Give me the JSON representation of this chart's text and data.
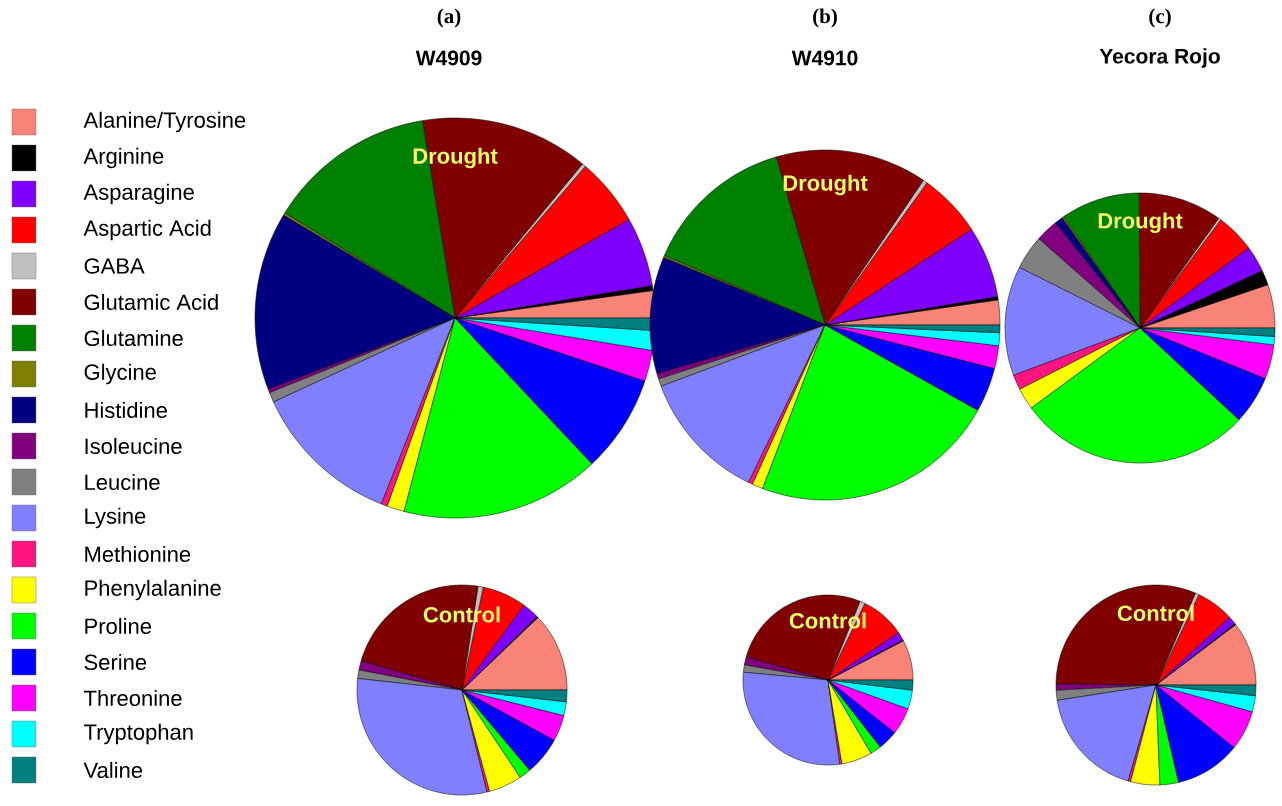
{
  "chart_data": [
    {
      "type": "pie",
      "title": "(a)",
      "subtitle": "W4909",
      "annotations": [
        "Drought"
      ],
      "legend": "left",
      "categories": [
        "Alanine/Tyrosine",
        "Arginine",
        "Asparagine",
        "Aspartic Acid",
        "GABA",
        "Glutamic Acid",
        "Glutamine",
        "Glycine",
        "Histidine",
        "Isoleucine",
        "Leucine",
        "Lysine",
        "Methionine",
        "Phenylalanine",
        "Proline",
        "Serine",
        "Threonine",
        "Tryptophan",
        "Valine"
      ],
      "values": [
        2.2,
        0.4,
        5.6,
        5.5,
        0.3,
        13.6,
        13.6,
        0.2,
        14.4,
        0.3,
        0.8,
        12.1,
        0.5,
        1.4,
        16.1,
        7.9,
        2.5,
        1.6,
        1.0
      ],
      "colors": [
        "#f88478",
        "#000000",
        "#8000ff",
        "#ff0000",
        "#c0c0c0",
        "#800000",
        "#008000",
        "#808000",
        "#000080",
        "#800080",
        "#808080",
        "#8080ff",
        "#ff1480",
        "#ffff00",
        "#00ff00",
        "#0000ff",
        "#ff00ff",
        "#00ffff",
        "#008080"
      ]
    },
    {
      "type": "pie",
      "title": "(b)",
      "subtitle": "W4910",
      "annotations": [
        "Drought"
      ],
      "categories": [
        null,
        null,
        null,
        null,
        null,
        null,
        null,
        null,
        null,
        null,
        null,
        null,
        null,
        null,
        null,
        null,
        null,
        null,
        null
      ],
      "values": [
        2.3,
        0.3,
        6.6,
        5.9,
        0.4,
        14.0,
        14.0,
        0.2,
        10.8,
        0.5,
        0.7,
        12.1,
        0.4,
        1.0,
        22.7,
        4.1,
        2.1,
        1.2,
        0.7
      ],
      "colors": [
        "#f88478",
        "#000000",
        "#8000ff",
        "#ff0000",
        "#c0c0c0",
        "#800000",
        "#008000",
        "#808000",
        "#000080",
        "#800080",
        "#808080",
        "#8080ff",
        "#ff1480",
        "#ffff00",
        "#00ff00",
        "#0000ff",
        "#ff00ff",
        "#00ffff",
        "#008080"
      ]
    },
    {
      "type": "pie",
      "title": "(c)",
      "subtitle": "Yecora Rojo",
      "annotations": [
        "Drought"
      ],
      "categories": [
        null,
        null,
        null,
        null,
        null,
        null,
        null,
        null,
        null,
        null,
        null,
        null,
        null,
        null,
        null,
        null,
        null,
        null,
        null
      ],
      "values": [
        5.2,
        1.8,
        3.1,
        4.7,
        0.3,
        10.0,
        9.5,
        0.2,
        1.0,
        2.7,
        4.1,
        13.1,
        1.8,
        2.6,
        28.0,
        5.8,
        4.1,
        1.0,
        1.0
      ],
      "colors": [
        "#f88478",
        "#000000",
        "#8000ff",
        "#ff0000",
        "#c0c0c0",
        "#800000",
        "#008000",
        "#808000",
        "#000080",
        "#800080",
        "#808080",
        "#8080ff",
        "#ff1480",
        "#ffff00",
        "#00ff00",
        "#0000ff",
        "#ff00ff",
        "#00ffff",
        "#008080"
      ]
    },
    {
      "type": "pie",
      "annotations": [
        "Control"
      ],
      "categories": [
        null,
        null,
        null,
        null,
        null,
        null,
        null,
        null,
        null,
        null,
        null,
        null,
        null,
        null,
        null,
        null,
        null,
        null,
        null
      ],
      "values": [
        12.1,
        0.2,
        2.6,
        6.8,
        0.8,
        22.9,
        null,
        null,
        null,
        1.4,
        1.3,
        30.5,
        0.4,
        5.1,
        1.8,
        5.9,
        4.0,
        2.1,
        1.8
      ],
      "colors": [
        "#f88478",
        "#000000",
        "#8000ff",
        "#ff0000",
        "#c0c0c0",
        "#800000",
        "#008000",
        "#808000",
        "#000080",
        "#800080",
        "#808080",
        "#8080ff",
        "#ff1480",
        "#ffff00",
        "#00ff00",
        "#0000ff",
        "#ff00ff",
        "#00ffff",
        "#008080"
      ]
    },
    {
      "type": "pie",
      "annotations": [
        "Control"
      ],
      "categories": [
        null,
        null,
        null,
        null,
        null,
        null,
        null,
        null,
        null,
        null,
        null,
        null,
        null,
        null,
        null,
        null,
        null,
        null,
        null
      ],
      "values": [
        7.6,
        0.2,
        1.6,
        8.4,
        1.0,
        26.7,
        null,
        null,
        null,
        1.5,
        1.4,
        28.6,
        0.4,
        5.8,
        2.1,
        3.8,
        5.1,
        3.6,
        1.9
      ],
      "colors": [
        "#f88478",
        "#000000",
        "#8000ff",
        "#ff0000",
        "#c0c0c0",
        "#800000",
        "#008000",
        "#808000",
        "#000080",
        "#800080",
        "#808080",
        "#8080ff",
        "#ff1480",
        "#ffff00",
        "#00ff00",
        "#0000ff",
        "#ff00ff",
        "#00ffff",
        "#008080"
      ]
    },
    {
      "type": "pie",
      "annotations": [
        "Control"
      ],
      "categories": [
        null,
        null,
        null,
        null,
        null,
        null,
        null,
        null,
        null,
        null,
        null,
        null,
        null,
        null,
        null,
        null,
        null,
        null,
        null
      ],
      "values": [
        10.3,
        0.2,
        1.3,
        6.1,
        0.6,
        31.2,
        null,
        null,
        null,
        1.0,
        1.6,
        18.0,
        0.4,
        4.7,
        3.0,
        10.6,
        6.4,
        2.6,
        1.7
      ],
      "colors": [
        "#f88478",
        "#000000",
        "#8000ff",
        "#ff0000",
        "#c0c0c0",
        "#800000",
        "#008000",
        "#808000",
        "#000080",
        "#800080",
        "#808080",
        "#8080ff",
        "#ff1480",
        "#ffff00",
        "#00ff00",
        "#0000ff",
        "#ff00ff",
        "#00ffff",
        "#008080"
      ]
    }
  ]
}
